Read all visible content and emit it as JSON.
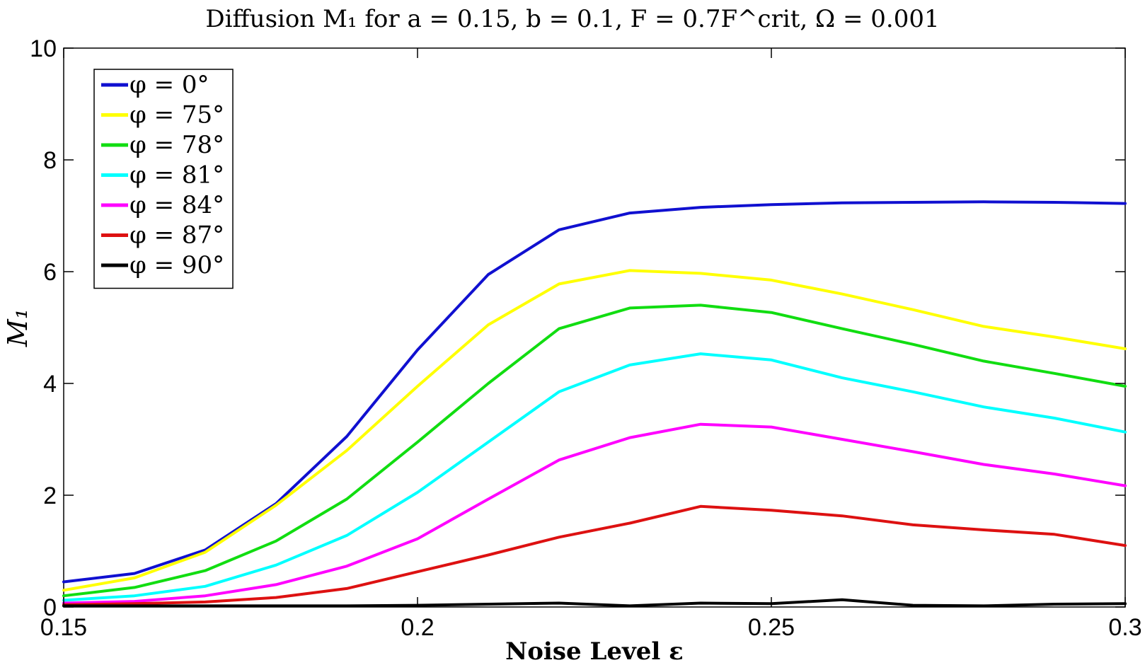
{
  "chart_data": {
    "type": "line",
    "title": "Diffusion M₁ for a = 0.15, b = 0.1, F = 0.7F^crit, Ω = 0.001",
    "xlabel": "Noise Level ε",
    "ylabel": "M₁",
    "xlim": [
      0.15,
      0.3
    ],
    "ylim": [
      0,
      10
    ],
    "xticks": [
      0.15,
      0.2,
      0.25,
      0.3
    ],
    "xtick_labels": [
      "0.15",
      "0.2",
      "0.25",
      "0.3"
    ],
    "yticks": [
      0,
      2,
      4,
      6,
      8,
      10
    ],
    "ytick_labels": [
      "0",
      "2",
      "4",
      "6",
      "8",
      "10"
    ],
    "grid": false,
    "legend_position": "top-left",
    "x": [
      0.15,
      0.16,
      0.17,
      0.18,
      0.19,
      0.2,
      0.21,
      0.22,
      0.23,
      0.24,
      0.25,
      0.26,
      0.27,
      0.28,
      0.29,
      0.3
    ],
    "series": [
      {
        "name": "φ = 0°",
        "color": "#1010d0",
        "values": [
          0.45,
          0.6,
          1.02,
          1.85,
          3.05,
          4.6,
          5.95,
          6.75,
          7.05,
          7.15,
          7.2,
          7.23,
          7.24,
          7.25,
          7.24,
          7.22
        ]
      },
      {
        "name": "φ = 75°",
        "color": "#ffff00",
        "values": [
          0.3,
          0.52,
          0.98,
          1.82,
          2.8,
          3.95,
          5.05,
          5.78,
          6.02,
          5.97,
          5.85,
          5.6,
          5.32,
          5.02,
          4.83,
          4.62
        ]
      },
      {
        "name": "φ = 78°",
        "color": "#11dd11",
        "values": [
          0.2,
          0.35,
          0.65,
          1.18,
          1.93,
          2.95,
          4.0,
          4.98,
          5.35,
          5.4,
          5.27,
          4.98,
          4.7,
          4.4,
          4.18,
          3.95
        ]
      },
      {
        "name": "φ = 81°",
        "color": "#00ffff",
        "values": [
          0.12,
          0.2,
          0.37,
          0.75,
          1.28,
          2.05,
          2.95,
          3.85,
          4.33,
          4.53,
          4.42,
          4.1,
          3.85,
          3.58,
          3.38,
          3.13
        ]
      },
      {
        "name": "φ = 84°",
        "color": "#ff00ff",
        "values": [
          0.07,
          0.1,
          0.2,
          0.4,
          0.73,
          1.22,
          1.93,
          2.63,
          3.03,
          3.27,
          3.22,
          3.0,
          2.78,
          2.55,
          2.38,
          2.17
        ]
      },
      {
        "name": "φ = 87°",
        "color": "#dd1111",
        "values": [
          0.04,
          0.06,
          0.09,
          0.17,
          0.33,
          0.63,
          0.93,
          1.25,
          1.5,
          1.8,
          1.73,
          1.63,
          1.47,
          1.38,
          1.3,
          1.1
        ]
      },
      {
        "name": "φ = 90°",
        "color": "#000000",
        "values": [
          0.02,
          0.02,
          0.02,
          0.02,
          0.02,
          0.03,
          0.05,
          0.07,
          0.02,
          0.07,
          0.06,
          0.13,
          0.03,
          0.02,
          0.05,
          0.06
        ]
      }
    ]
  }
}
